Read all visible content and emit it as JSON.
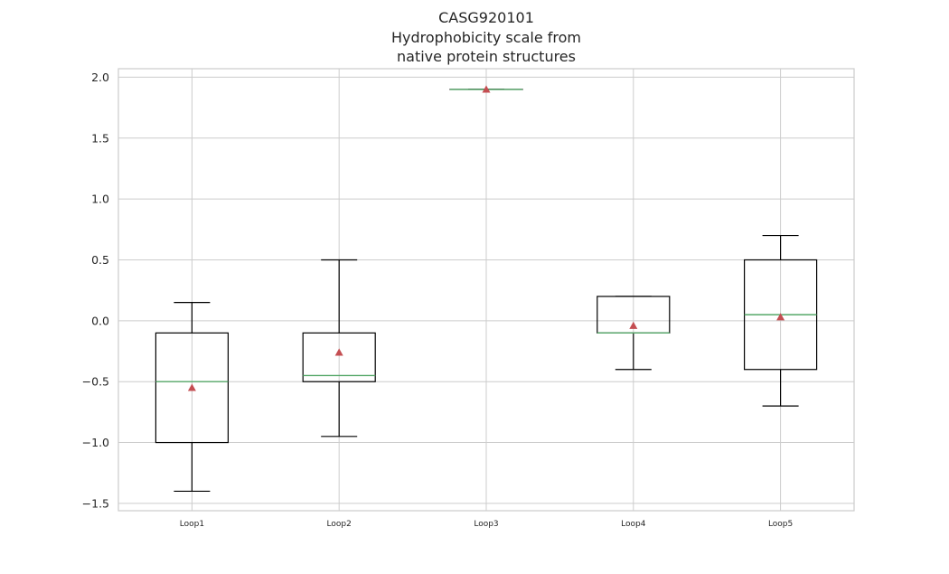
{
  "chart_data": {
    "type": "box",
    "title_lines": [
      "CASG920101",
      "Hydrophobicity scale from",
      "native protein structures"
    ],
    "categories": [
      "Loop1",
      "Loop2",
      "Loop3",
      "Loop4",
      "Loop5"
    ],
    "boxes": [
      {
        "whisker_low": -1.4,
        "q1": -1.0,
        "median": -0.5,
        "q3": -0.1,
        "whisker_high": 0.15,
        "mean": -0.55
      },
      {
        "whisker_low": -0.95,
        "q1": -0.5,
        "median": -0.45,
        "q3": -0.1,
        "whisker_high": 0.5,
        "mean": -0.26
      },
      {
        "whisker_low": 1.9,
        "q1": 1.9,
        "median": 1.9,
        "q3": 1.9,
        "whisker_high": 1.9,
        "mean": 1.9
      },
      {
        "whisker_low": -0.4,
        "q1": -0.1,
        "median": -0.1,
        "q3": 0.2,
        "whisker_high": 0.2,
        "mean": -0.04
      },
      {
        "whisker_low": -0.7,
        "q1": -0.4,
        "median": 0.05,
        "q3": 0.5,
        "whisker_high": 0.7,
        "mean": 0.03
      }
    ],
    "yticks": [
      -1.5,
      -1.0,
      -0.5,
      0.0,
      0.5,
      1.0,
      1.5,
      2.0
    ],
    "ytick_labels": [
      "−1.5",
      "−1.0",
      "−0.5",
      "0.0",
      "0.5",
      "1.0",
      "1.5",
      "2.0"
    ],
    "ylim": [
      -1.56,
      2.07
    ],
    "grid": true,
    "colors": {
      "box": "#000000",
      "median": "#55a868",
      "mean": "#c44e52",
      "grid": "#cccccc",
      "frame": "#cccccc"
    }
  }
}
